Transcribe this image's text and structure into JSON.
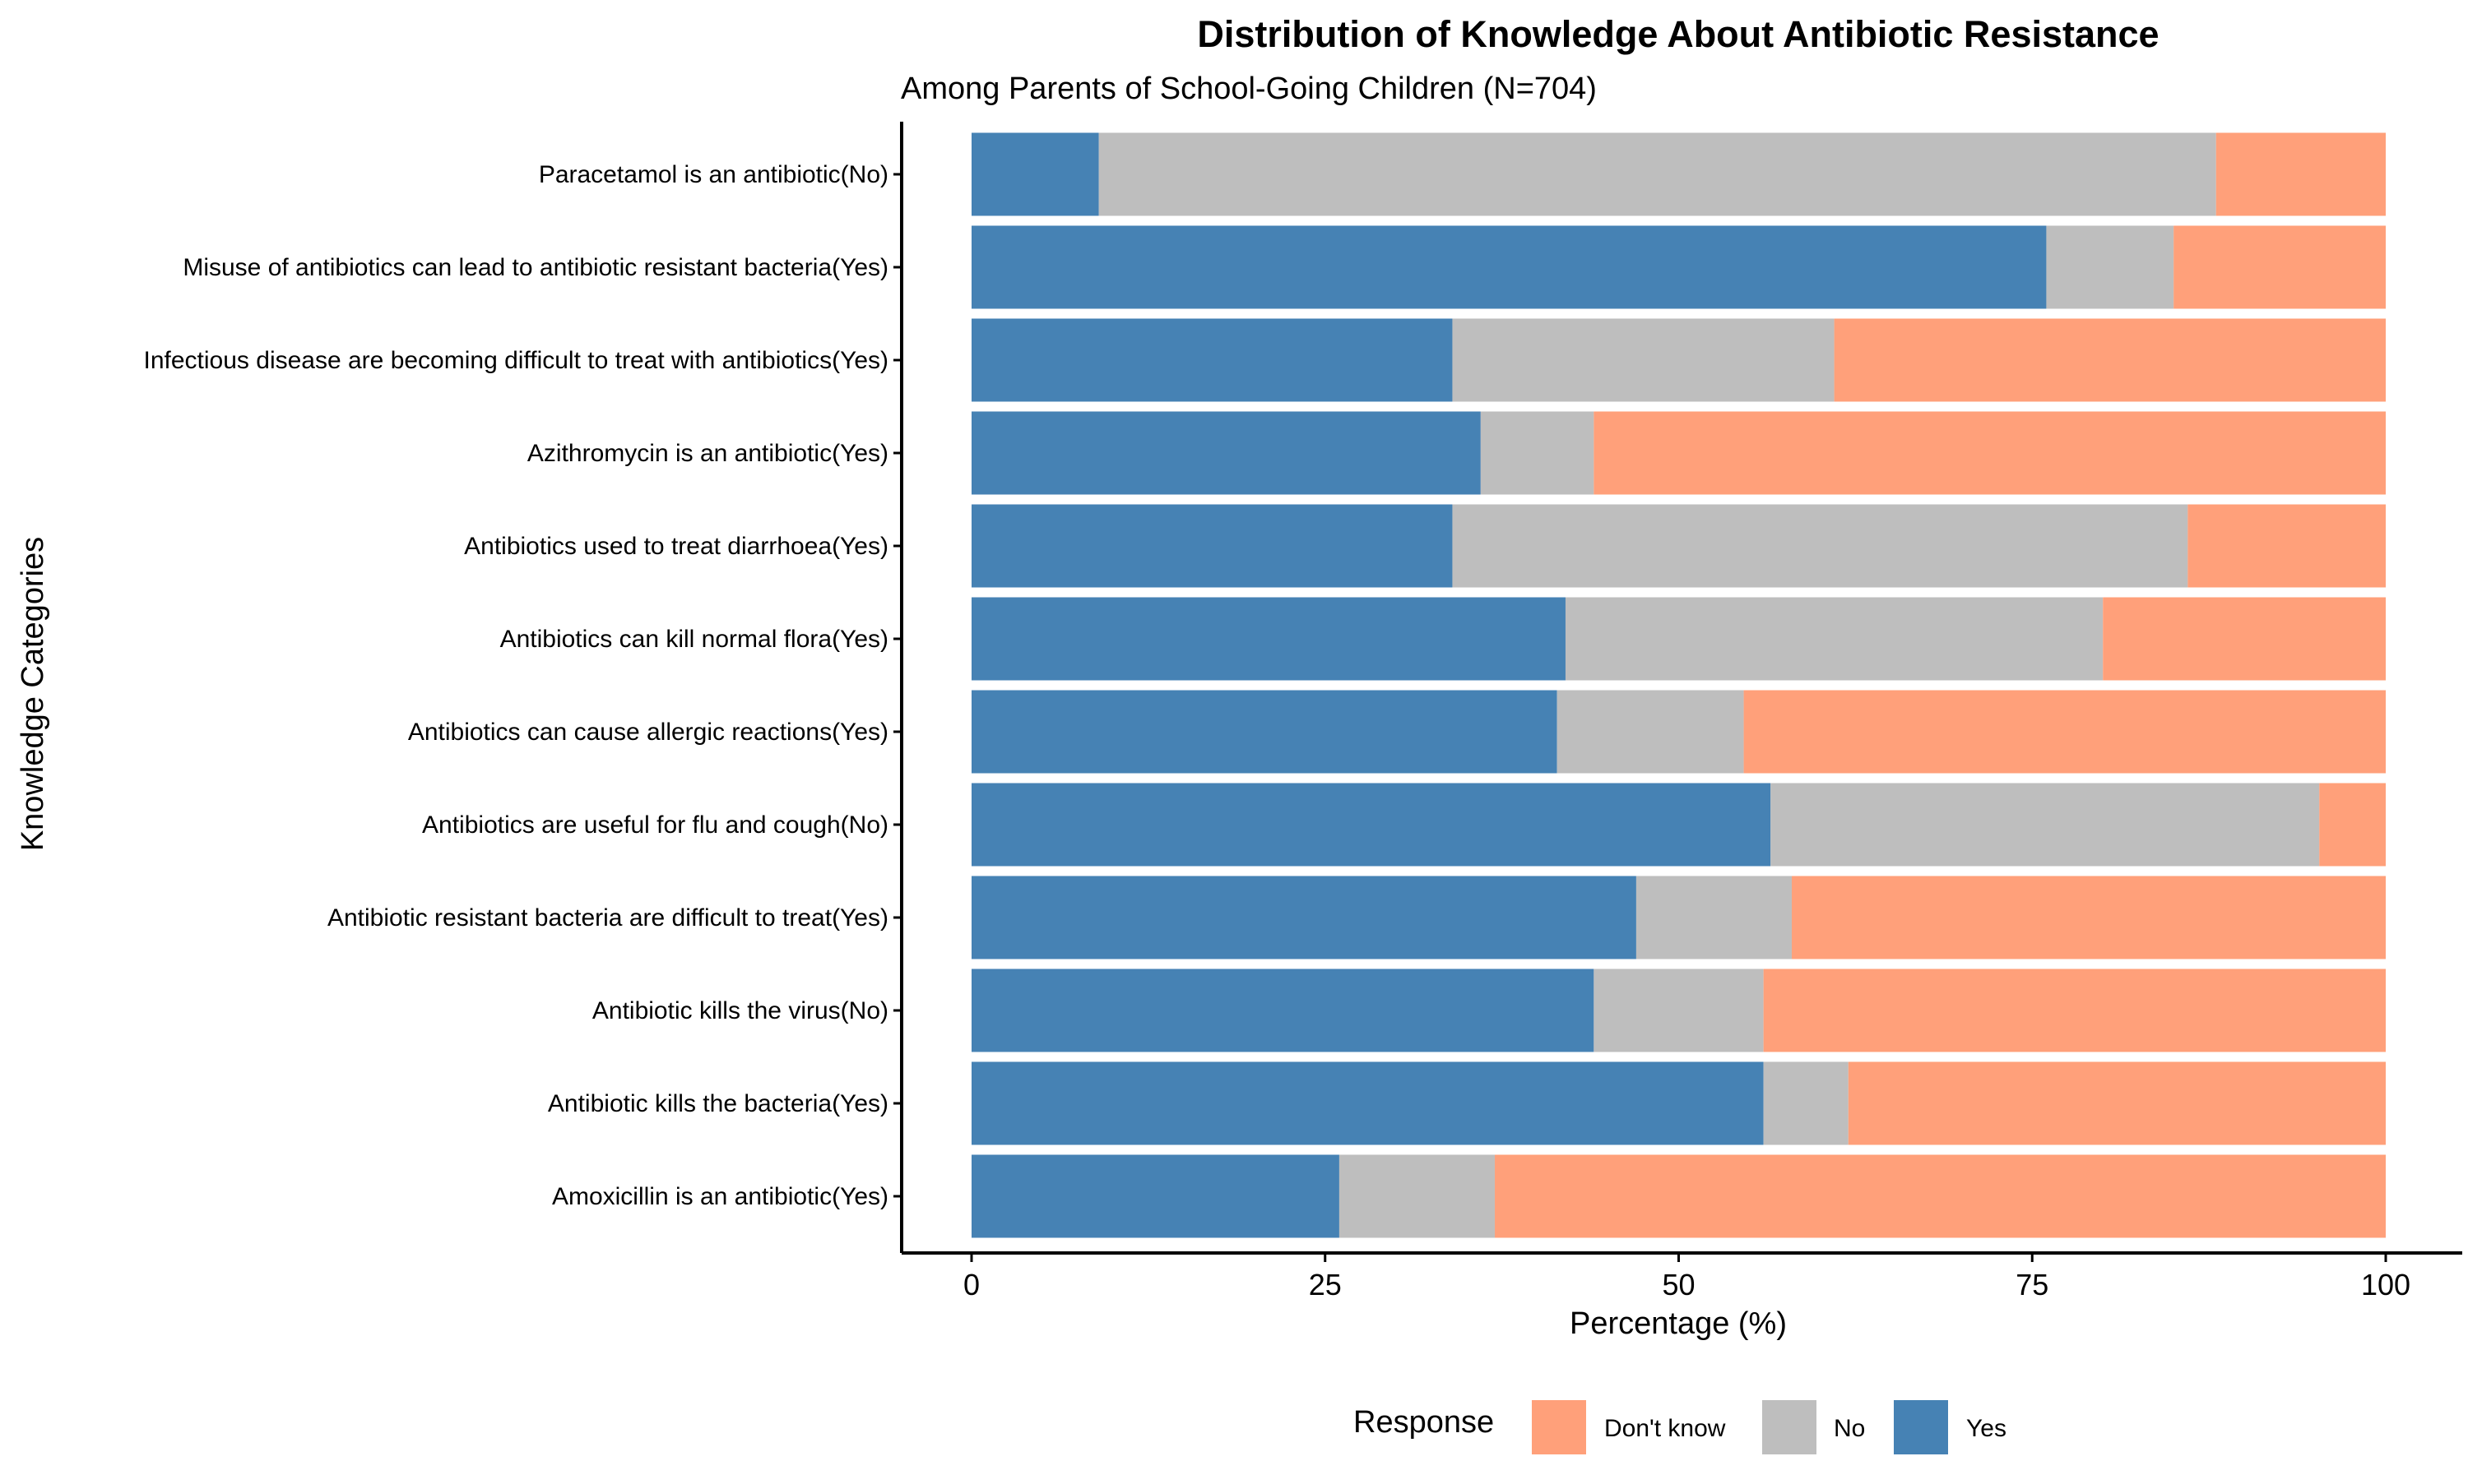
{
  "chart_data": {
    "type": "bar",
    "orientation": "horizontal",
    "stacked": true,
    "title": "Distribution of Knowledge About Antibiotic Resistance",
    "subtitle": "Among Parents of School-Going Children (N=704)",
    "xlabel": "Percentage (%)",
    "ylabel": "Knowledge Categories",
    "xlim": [
      0,
      100
    ],
    "xticks": [
      0,
      25,
      50,
      75,
      100
    ],
    "grid": false,
    "legend": {
      "title": "Response",
      "placement": "bottom"
    },
    "categories": [
      "Paracetamol is an antibiotic(No)",
      "Misuse of antibiotics can lead to antibiotic resistant bacteria(Yes)",
      "Infectious disease are becoming difficult to treat with antibiotics(Yes)",
      "Azithromycin is an antibiotic(Yes)",
      "Antibiotics used to treat diarrhoea(Yes)",
      "Antibiotics can kill normal flora(Yes)",
      "Antibiotics can cause allergic reactions(Yes)",
      "Antibiotics are useful for flu and cough(No)",
      "Antibiotic resistant bacteria are difficult to treat(Yes)",
      "Antibiotic kills the virus(No)",
      "Antibiotic kills the bacteria(Yes)",
      "Amoxicillin is an antibiotic(Yes)"
    ],
    "series": [
      {
        "name": "Yes",
        "color": "#4682b4",
        "values": [
          9,
          76,
          34,
          36,
          34,
          42,
          41.4,
          56.5,
          47,
          44,
          56,
          26
        ]
      },
      {
        "name": "No",
        "color": "#bebebe",
        "values": [
          79,
          9,
          27,
          8,
          52,
          38,
          13.2,
          38.8,
          11,
          12,
          6,
          11
        ]
      },
      {
        "name": "Don't know",
        "color": "#ffa07a",
        "values": [
          12,
          15,
          39,
          56,
          14,
          20,
          45.4,
          4.7,
          42,
          44,
          38,
          63
        ]
      }
    ],
    "legend_order": [
      "Don't know",
      "No",
      "Yes"
    ]
  }
}
